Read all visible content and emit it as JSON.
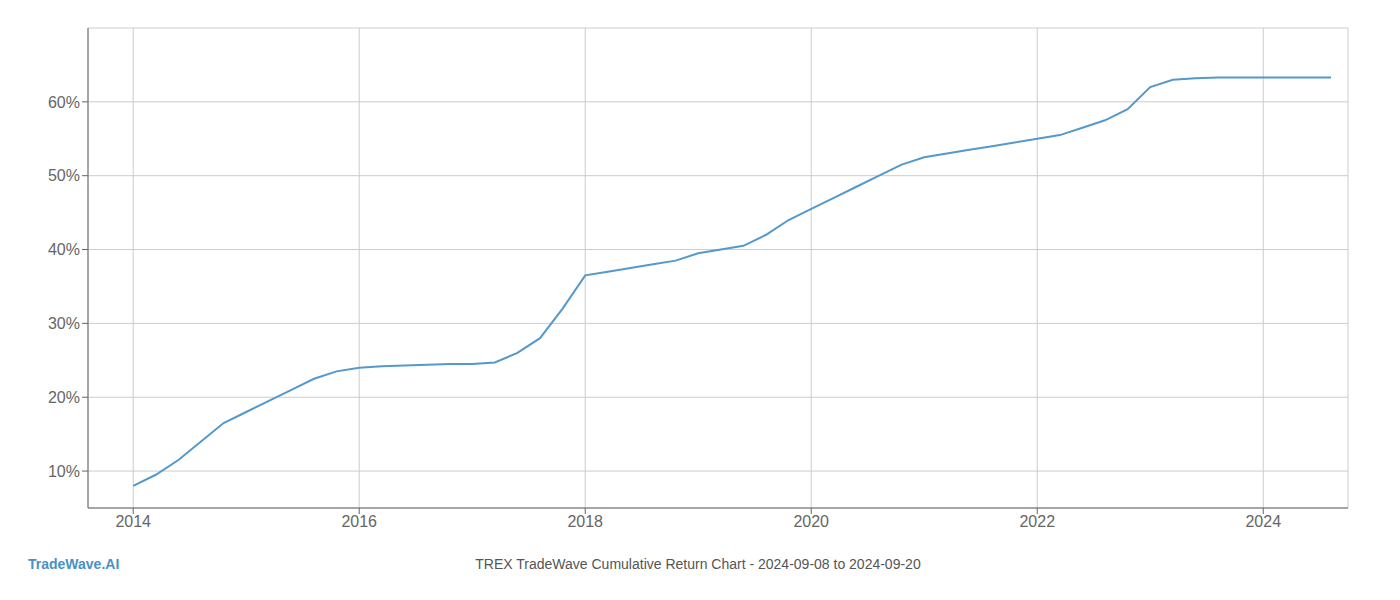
{
  "chart_data": {
    "type": "line",
    "title": "TREX TradeWave Cumulative Return Chart - 2024-09-08 to 2024-09-20",
    "annotations": [
      "TradeWave.AI"
    ],
    "color": "#5599cc",
    "grid": true,
    "x": [
      2014.0,
      2014.2,
      2014.4,
      2014.6,
      2014.8,
      2015.0,
      2015.2,
      2015.4,
      2015.6,
      2015.8,
      2016.0,
      2016.2,
      2016.4,
      2016.6,
      2016.8,
      2017.0,
      2017.2,
      2017.4,
      2017.6,
      2017.8,
      2018.0,
      2018.2,
      2018.4,
      2018.6,
      2018.8,
      2019.0,
      2019.2,
      2019.4,
      2019.6,
      2019.8,
      2020.0,
      2020.2,
      2020.4,
      2020.6,
      2020.8,
      2021.0,
      2021.2,
      2021.4,
      2021.6,
      2021.8,
      2022.0,
      2022.2,
      2022.4,
      2022.6,
      2022.8,
      2023.0,
      2023.2,
      2023.4,
      2023.6,
      2023.8,
      2024.0,
      2024.2,
      2024.4,
      2024.6
    ],
    "values": [
      8.0,
      9.5,
      11.5,
      14.0,
      16.5,
      18.0,
      19.5,
      21.0,
      22.5,
      23.5,
      24.0,
      24.2,
      24.3,
      24.4,
      24.5,
      24.5,
      24.7,
      26.0,
      28.0,
      32.0,
      36.5,
      37.0,
      37.5,
      38.0,
      38.5,
      39.5,
      40.0,
      40.5,
      42.0,
      44.0,
      45.5,
      47.0,
      48.5,
      50.0,
      51.5,
      52.5,
      53.0,
      53.5,
      54.0,
      54.5,
      55.0,
      55.5,
      56.5,
      57.5,
      59.0,
      62.0,
      63.0,
      63.2,
      63.3,
      63.3,
      63.3,
      63.3,
      63.3,
      63.3
    ],
    "xlim": [
      2013.6,
      2024.75
    ],
    "xticks": [
      2014,
      2016,
      2018,
      2020,
      2022,
      2024
    ],
    "ylim": [
      5,
      70
    ],
    "yticks": [
      {
        "value": 10,
        "label": "10%"
      },
      {
        "value": 20,
        "label": "20%"
      },
      {
        "value": 30,
        "label": "30%"
      },
      {
        "value": 40,
        "label": "40%"
      },
      {
        "value": 50,
        "label": "50%"
      },
      {
        "value": 60,
        "label": "60%"
      }
    ]
  }
}
